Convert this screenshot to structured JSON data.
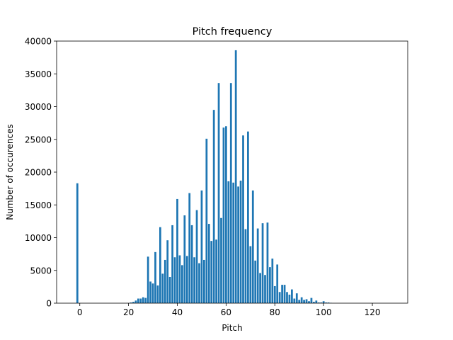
{
  "chart_data": {
    "type": "bar",
    "title": "Pitch frequency",
    "xlabel": "Pitch",
    "ylabel": "Number of occurences",
    "xlim": [
      -9.5,
      134.5
    ],
    "ylim": [
      0,
      40000
    ],
    "xticks": [
      0,
      20,
      40,
      60,
      80,
      100,
      120
    ],
    "yticks": [
      0,
      5000,
      10000,
      15000,
      20000,
      25000,
      30000,
      35000,
      40000
    ],
    "grid": false,
    "bar_color": "#1f77b4",
    "bar_width": 0.8,
    "x": [
      -1,
      21,
      22,
      23,
      24,
      25,
      26,
      27,
      28,
      29,
      30,
      31,
      32,
      33,
      34,
      35,
      36,
      37,
      38,
      39,
      40,
      41,
      42,
      43,
      44,
      45,
      46,
      47,
      48,
      49,
      50,
      51,
      52,
      53,
      54,
      55,
      56,
      57,
      58,
      59,
      60,
      61,
      62,
      63,
      64,
      65,
      66,
      67,
      68,
      69,
      70,
      71,
      72,
      73,
      74,
      75,
      76,
      77,
      78,
      79,
      80,
      81,
      82,
      83,
      84,
      85,
      86,
      87,
      88,
      89,
      90,
      91,
      92,
      93,
      94,
      95,
      96,
      97,
      98,
      99,
      100,
      101,
      102,
      103
    ],
    "values": [
      18300,
      100,
      200,
      400,
      700,
      700,
      900,
      800,
      7100,
      3300,
      3000,
      7800,
      2700,
      11600,
      4500,
      6600,
      9600,
      4000,
      11900,
      7000,
      15900,
      7300,
      5800,
      13400,
      7200,
      16800,
      11900,
      7000,
      14200,
      6100,
      17200,
      6600,
      25100,
      12100,
      9500,
      29500,
      9700,
      33600,
      13000,
      26800,
      27000,
      18600,
      33600,
      18400,
      38600,
      17800,
      18700,
      25600,
      11300,
      26200,
      8700,
      17200,
      6500,
      11400,
      4600,
      12200,
      4300,
      12300,
      5500,
      6800,
      2600,
      5900,
      1700,
      2800,
      2800,
      1700,
      1300,
      2100,
      700,
      1500,
      500,
      900,
      500,
      600,
      300,
      800,
      200,
      400,
      100,
      100,
      300,
      100,
      100,
      50
    ]
  }
}
